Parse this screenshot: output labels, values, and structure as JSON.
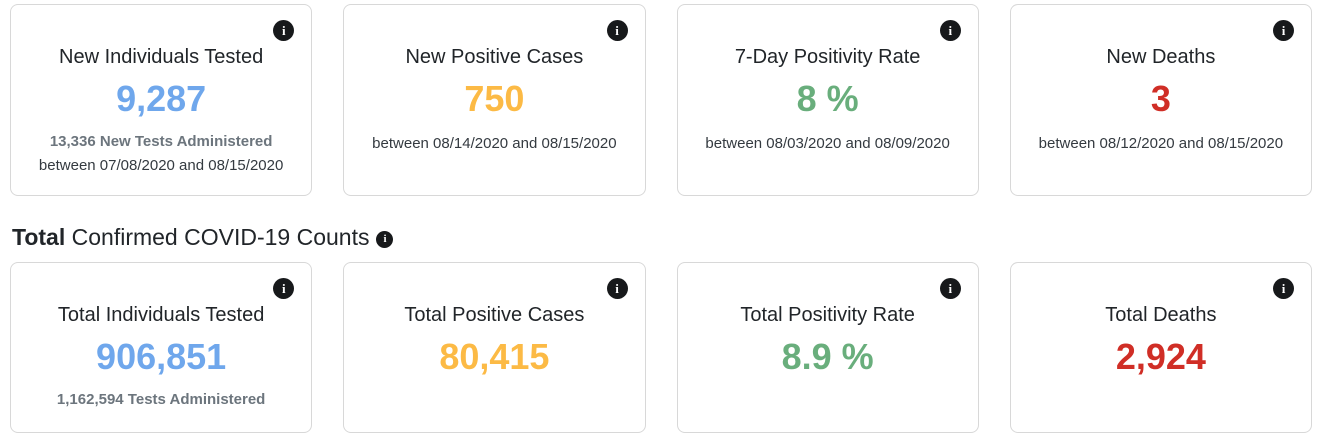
{
  "colors": {
    "blue": "#6FA7EC",
    "orange": "#FCBA45",
    "green": "#69AE7C",
    "red": "#D02E26"
  },
  "icons": {
    "info": "i"
  },
  "section": {
    "title_bold": "Total",
    "title_rest": " Confirmed COVID-19 Counts"
  },
  "cards": {
    "row1": [
      {
        "title": "New Individuals Tested",
        "value": "9,287",
        "color": "blue",
        "subtitle_bold": "13,336 New Tests Administered",
        "date_range": "between 07/08/2020 and 08/15/2020"
      },
      {
        "title": "New Positive Cases",
        "value": "750",
        "color": "orange",
        "date_range": "between 08/14/2020 and 08/15/2020"
      },
      {
        "title": "7-Day Positivity Rate",
        "value": "8 %",
        "color": "green",
        "date_range": "between 08/03/2020 and 08/09/2020"
      },
      {
        "title": "New Deaths",
        "value": "3",
        "color": "red",
        "date_range": "between 08/12/2020 and 08/15/2020"
      }
    ],
    "row2": [
      {
        "title": "Total Individuals Tested",
        "value": "906,851",
        "color": "blue",
        "subtitle_bold": "1,162,594 Tests Administered"
      },
      {
        "title": "Total Positive Cases",
        "value": "80,415",
        "color": "orange"
      },
      {
        "title": "Total Positivity Rate",
        "value": "8.9 %",
        "color": "green"
      },
      {
        "title": "Total Deaths",
        "value": "2,924",
        "color": "red"
      }
    ]
  }
}
